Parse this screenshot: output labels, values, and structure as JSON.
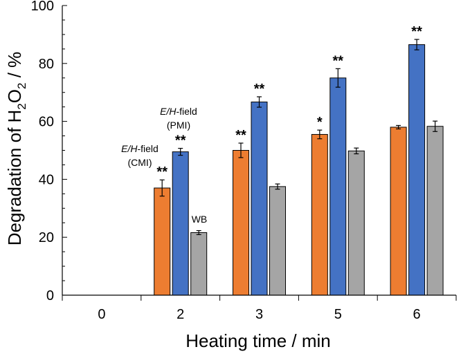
{
  "chart_data": {
    "type": "bar",
    "xlabel": "Heating time / min",
    "ylabel_prefix": "Degradation of H",
    "ylabel_sub1": "2",
    "ylabel_mid": "O",
    "ylabel_sub2": "2",
    "ylabel_suffix": " / %",
    "ylim": [
      0,
      100
    ],
    "yticks": [
      0,
      20,
      40,
      60,
      80,
      100
    ],
    "yminor_step": 5,
    "categories": [
      "0",
      "2",
      "3",
      "5",
      "6"
    ],
    "series": [
      {
        "name": "E/H-field (CMI)",
        "color": "#ED7D31",
        "values": [
          null,
          37,
          50,
          55.5,
          58
        ],
        "errors": [
          null,
          2.8,
          2.5,
          1.5,
          0.6
        ],
        "significance": [
          "",
          "**",
          "**",
          "*",
          ""
        ]
      },
      {
        "name": "E/H-field (PMI)",
        "color": "#4472C4",
        "values": [
          null,
          49.5,
          66.7,
          75,
          86.5
        ],
        "errors": [
          null,
          1.2,
          1.8,
          3.2,
          1.8
        ],
        "significance": [
          "",
          "**",
          "**",
          "**",
          "**"
        ]
      },
      {
        "name": "WB",
        "color": "#A5A5A5",
        "values": [
          null,
          21.6,
          37.5,
          49.8,
          58.3
        ],
        "errors": [
          null,
          0.7,
          0.9,
          1.0,
          1.8
        ],
        "significance": [
          "",
          "",
          "",
          "",
          ""
        ]
      }
    ],
    "annotations": {
      "cmi_line1_italic": "E/H",
      "cmi_line1_rest": "-field",
      "cmi_line2": "(CMI)",
      "pmi_line1_italic": "E/H",
      "pmi_line1_rest": "-field",
      "pmi_line2": "(PMI)",
      "wb": "WB"
    }
  }
}
